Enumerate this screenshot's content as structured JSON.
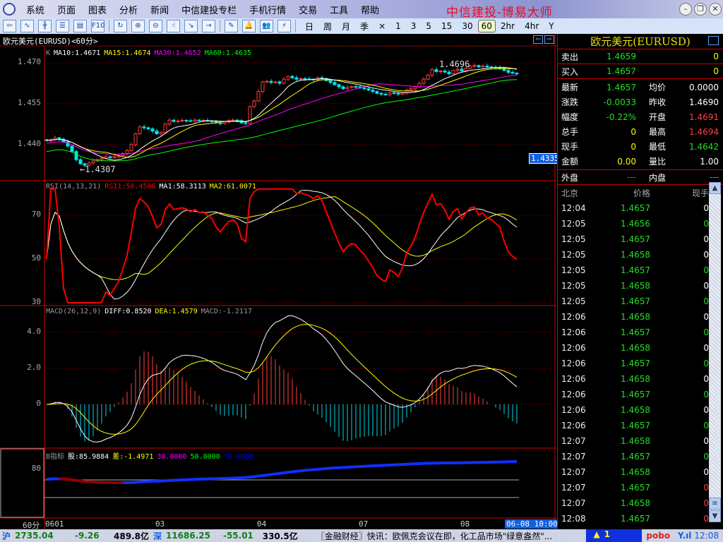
{
  "app": {
    "title": "中信建投-博易大师",
    "menu": [
      "系统",
      "页面",
      "图表",
      "分析",
      "新闻",
      "中信建投专栏",
      "手机行情",
      "交易",
      "工具",
      "帮助"
    ],
    "window_controls": [
      "minimize",
      "restore",
      "close"
    ]
  },
  "toolbar": {
    "icons": [
      "back-icon",
      "line-chart-icon",
      "candle-chart-icon",
      "list-icon",
      "news-icon",
      "f10-icon",
      "refresh-icon",
      "zoom-in-icon",
      "zoom-out-icon",
      "pointer-icon",
      "export-icon",
      "import-icon",
      "draw-icon",
      "alarm-bell-icon",
      "users-icon",
      "lightning-icon"
    ],
    "f10_label": "F10",
    "periods": [
      "日",
      "周",
      "月",
      "季",
      "×",
      "1",
      "3",
      "5",
      "15",
      "30",
      "60",
      "2hr",
      "4hr",
      "Y"
    ],
    "selected_period": "60"
  },
  "chart": {
    "title": "欧元美元(EURUSD)<60分>",
    "kline_legend": {
      "label": "K",
      "ma10": "MA10:1.4671",
      "ma15": "MA15:1.4674",
      "ma30": "MA30:1.4652",
      "ma60": "MA60:1.4635"
    },
    "rsi_legend": {
      "label": "RSI(14,13,21)",
      "rsi1": "RSI1:50.4506",
      "ma1": "MA1:58.3113",
      "ma2": "MA2:61.0071"
    },
    "macd_legend": {
      "label": "MACD(26,12,9)",
      "diff": "DIFF:0.8520",
      "dea": "DEA:1.4579",
      "macd": "MACD:-1.2117"
    },
    "b_legend": {
      "label": "B指标",
      "gu": "股:85.9884",
      "cha": "差:-1.4971",
      "l30": "30.0000",
      "l50": "50.0000",
      "l70": "70.0000"
    },
    "cursor_price": "1.4335",
    "high_label": "1.4696",
    "low_label": "←1.4307",
    "period_label": "60分",
    "cursor_time": "06-08 10:00",
    "colors": {
      "up": "#ff3b3b",
      "down": "#00e5ee",
      "ma10": "#ffffff",
      "ma15": "#ffff00",
      "ma30": "#ff00ff",
      "ma60": "#00ff00"
    }
  },
  "chart_data": [
    {
      "type": "candlestick",
      "name": "K",
      "yticks": [
        "1.470",
        "1.455",
        "1.440"
      ],
      "ylim": [
        1.433,
        1.4735
      ],
      "xticks": [
        "0601",
        "03",
        "04",
        "07",
        "08"
      ],
      "xtick_index": [
        0,
        26,
        50,
        74,
        98
      ],
      "closes": [
        1.4415,
        1.4418,
        1.4425,
        1.442,
        1.441,
        1.4395,
        1.4375,
        1.4345,
        1.433,
        1.4325,
        1.4333,
        1.434,
        1.4345,
        1.435,
        1.4356,
        1.4352,
        1.4356,
        1.436,
        1.4368,
        1.4378,
        1.44,
        1.444,
        1.4465,
        1.4462,
        1.4458,
        1.445,
        1.444,
        1.4445,
        1.4475,
        1.449,
        1.4485,
        1.4487,
        1.4489,
        1.4488,
        1.4486,
        1.449,
        1.4488,
        1.4489,
        1.4487,
        1.4485,
        1.448,
        1.4477,
        1.4483,
        1.4488,
        1.449,
        1.4488,
        1.448,
        1.4478,
        1.454,
        1.456,
        1.4595,
        1.463,
        1.4632,
        1.4628,
        1.463,
        1.4625,
        1.464,
        1.465,
        1.4645,
        1.464,
        1.4642,
        1.4641,
        1.464,
        1.4638,
        1.4645,
        1.4642,
        1.4635,
        1.4628,
        1.462,
        1.4612,
        1.4605,
        1.461,
        1.4613,
        1.4612,
        1.4608,
        1.4605,
        1.46,
        1.4595,
        1.4588,
        1.4585,
        1.4583,
        1.459,
        1.4588,
        1.4585,
        1.459,
        1.46,
        1.4605,
        1.4612,
        1.4625,
        1.464,
        1.4655,
        1.4675,
        1.4668,
        1.467,
        1.4666,
        1.466,
        1.4672,
        1.4677,
        1.467,
        1.468,
        1.4688,
        1.469,
        1.4685,
        1.4688,
        1.4685,
        1.4684,
        1.4682,
        1.468,
        1.4672,
        1.4665,
        1.4662,
        1.466
      ]
    },
    {
      "type": "line",
      "name": "RSI",
      "yticks": [
        "70",
        "50",
        "30"
      ],
      "ylim": [
        25,
        85
      ]
    },
    {
      "type": "bar+line",
      "name": "MACD",
      "yticks": [
        "4.0",
        "2.0",
        "0"
      ],
      "ylim": [
        -6,
        5.5
      ]
    },
    {
      "type": "line",
      "name": "B指标",
      "yticks": [
        "80"
      ]
    }
  ],
  "quote": {
    "title": "欧元美元(EURUSD)",
    "sell": {
      "label": "卖出",
      "price": "1.4659",
      "vol": "0"
    },
    "buy": {
      "label": "买入",
      "price": "1.4657",
      "vol": "0"
    },
    "rows": [
      {
        "l1": "最新",
        "v1": "1.4657",
        "c1": "#20e020",
        "l2": "均价",
        "v2": "0.0000",
        "c2": "#ffffff"
      },
      {
        "l1": "涨跌",
        "v1": "-0.0033",
        "c1": "#20e020",
        "l2": "昨收",
        "v2": "1.4690",
        "c2": "#ffffff"
      },
      {
        "l1": "幅度",
        "v1": "-0.22%",
        "c1": "#20e020",
        "l2": "开盘",
        "v2": "1.4691",
        "c2": "#ff4040"
      },
      {
        "l1": "总手",
        "v1": "0",
        "c1": "#ffff00",
        "l2": "最高",
        "v2": "1.4694",
        "c2": "#ff4040"
      },
      {
        "l1": "现手",
        "v1": "0",
        "c1": "#ffff00",
        "l2": "最低",
        "v2": "1.4642",
        "c2": "#20e020"
      },
      {
        "l1": "金额",
        "v1": "0.00",
        "c1": "#ffff00",
        "l2": "量比",
        "v2": "1.00",
        "c2": "#ffffff"
      }
    ],
    "outer": {
      "label": "外盘",
      "value": "---"
    },
    "inner": {
      "label": "内盘",
      "value": "---"
    }
  },
  "ticks": {
    "headers": [
      "北京",
      "价格",
      "现手"
    ],
    "rows": [
      [
        "12:04",
        "1.4657",
        "0",
        "#ffffff"
      ],
      [
        "12:05",
        "1.4656",
        "0",
        "#20e020"
      ],
      [
        "12:05",
        "1.4657",
        "0",
        "#ffffff"
      ],
      [
        "12:05",
        "1.4658",
        "0",
        "#ffffff"
      ],
      [
        "12:05",
        "1.4657",
        "0",
        "#20e020"
      ],
      [
        "12:05",
        "1.4658",
        "0",
        "#ffffff"
      ],
      [
        "12:05",
        "1.4657",
        "0",
        "#20e020"
      ],
      [
        "12:06",
        "1.4658",
        "0",
        "#ffffff"
      ],
      [
        "12:06",
        "1.4657",
        "0",
        "#20e020"
      ],
      [
        "12:06",
        "1.4658",
        "0",
        "#ffffff"
      ],
      [
        "12:06",
        "1.4657",
        "0",
        "#20e020"
      ],
      [
        "12:06",
        "1.4658",
        "0",
        "#ffffff"
      ],
      [
        "12:06",
        "1.4657",
        "0",
        "#20e020"
      ],
      [
        "12:06",
        "1.4658",
        "0",
        "#ffffff"
      ],
      [
        "12:06",
        "1.4657",
        "0",
        "#20e020"
      ],
      [
        "12:07",
        "1.4658",
        "0",
        "#ffffff"
      ],
      [
        "12:07",
        "1.4657",
        "0",
        "#20e020"
      ],
      [
        "12:07",
        "1.4658",
        "0",
        "#ffffff"
      ],
      [
        "12:07",
        "1.4657",
        "0",
        "#ff4040"
      ],
      [
        "12:07",
        "1.4658",
        "0",
        "#ff4040"
      ],
      [
        "12:08",
        "1.4657",
        "0",
        "#ff4040"
      ]
    ]
  },
  "status": {
    "sh_label": "沪",
    "sh_index": "2735.04",
    "sh_change": "-9.26",
    "sh_amount": "489.8亿",
    "sz_label": "深",
    "sz_index": "11686.25",
    "sz_change": "-55.01",
    "sz_amount": "330.5亿",
    "news": "〖金融财经〗快讯：欧佩克会议在即，化工品市场\"绿意盎然\"...",
    "alert_count": "1",
    "brand": "pobo",
    "time": "12:08"
  }
}
